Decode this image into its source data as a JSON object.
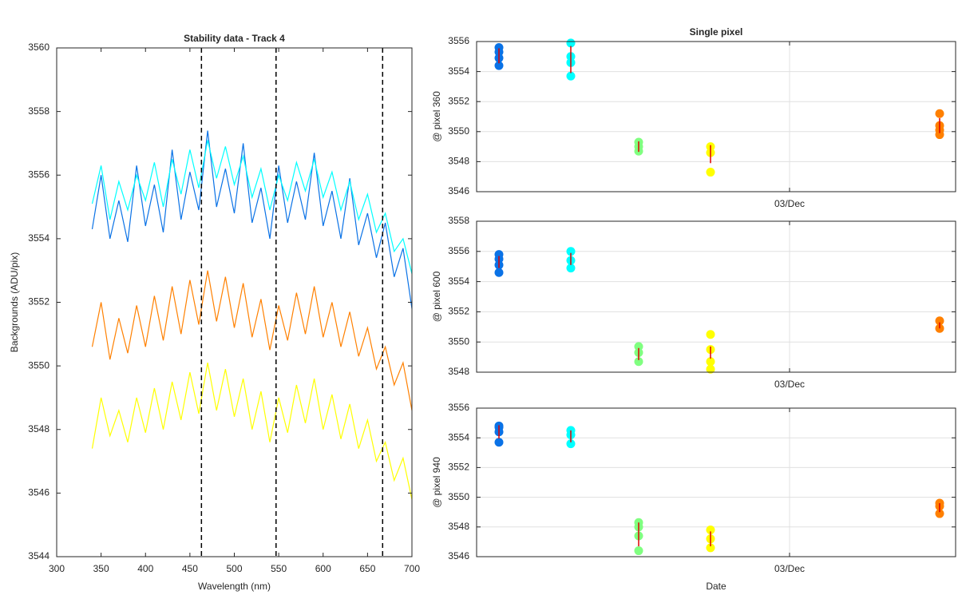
{
  "chart_data": [
    {
      "type": "line",
      "title": "Stability data - Track 4",
      "xlabel": "Wavelength (nm)",
      "ylabel": "Backgrounds (ADU/pix)",
      "xlim": [
        300,
        700
      ],
      "xticks": [
        300,
        350,
        400,
        450,
        500,
        550,
        600,
        650,
        700
      ],
      "ylim": [
        3544,
        3560
      ],
      "yticks": [
        3544,
        3546,
        3548,
        3550,
        3552,
        3554,
        3556,
        3558,
        3560
      ],
      "grid": false,
      "vlines": [
        463,
        547,
        667
      ],
      "vline_color": "#000000",
      "x": [
        340,
        350,
        360,
        370,
        380,
        390,
        400,
        410,
        420,
        430,
        440,
        450,
        460,
        470,
        480,
        490,
        500,
        510,
        520,
        530,
        540,
        550,
        560,
        570,
        580,
        590,
        600,
        610,
        620,
        630,
        640,
        650,
        660,
        670,
        680,
        690,
        700
      ],
      "series": [
        {
          "color": "#0a72e6",
          "values": [
            3554.3,
            3556.0,
            3554.0,
            3555.2,
            3553.9,
            3556.3,
            3554.4,
            3555.7,
            3554.2,
            3556.8,
            3554.6,
            3556.1,
            3554.9,
            3557.4,
            3555.0,
            3556.2,
            3554.8,
            3557.0,
            3554.5,
            3555.6,
            3554.0,
            3556.3,
            3554.5,
            3555.8,
            3554.6,
            3556.7,
            3554.4,
            3555.5,
            3554.0,
            3555.9,
            3553.8,
            3554.8,
            3553.4,
            3554.5,
            3552.8,
            3553.7,
            3551.8
          ]
        },
        {
          "color": "#00ffff",
          "values": [
            3555.1,
            3556.3,
            3554.6,
            3555.8,
            3554.9,
            3556.0,
            3555.2,
            3556.4,
            3555.0,
            3556.5,
            3555.4,
            3556.8,
            3555.6,
            3557.1,
            3555.9,
            3556.9,
            3555.7,
            3556.6,
            3555.3,
            3556.2,
            3554.9,
            3556.0,
            3555.2,
            3556.4,
            3555.5,
            3556.5,
            3555.3,
            3556.1,
            3554.9,
            3555.8,
            3554.6,
            3555.4,
            3554.2,
            3554.8,
            3553.6,
            3554.0,
            3552.9
          ]
        },
        {
          "color": "#ff8000",
          "values": [
            3550.6,
            3552.0,
            3550.2,
            3551.5,
            3550.4,
            3551.9,
            3550.6,
            3552.2,
            3550.8,
            3552.5,
            3551.0,
            3552.7,
            3551.3,
            3553.0,
            3551.4,
            3552.8,
            3551.2,
            3552.6,
            3550.9,
            3552.1,
            3550.5,
            3551.9,
            3550.8,
            3552.3,
            3551.0,
            3552.5,
            3550.9,
            3552.0,
            3550.6,
            3551.7,
            3550.3,
            3551.2,
            3549.9,
            3550.6,
            3549.4,
            3550.1,
            3548.6
          ]
        },
        {
          "color": "#ffff00",
          "values": [
            3547.4,
            3549.0,
            3547.8,
            3548.6,
            3547.6,
            3549.0,
            3547.9,
            3549.3,
            3548.0,
            3549.5,
            3548.3,
            3549.8,
            3548.5,
            3550.1,
            3548.6,
            3549.9,
            3548.4,
            3549.6,
            3548.0,
            3549.2,
            3547.6,
            3549.0,
            3547.9,
            3549.4,
            3548.2,
            3549.6,
            3548.0,
            3549.1,
            3547.7,
            3548.8,
            3547.4,
            3548.3,
            3547.0,
            3547.6,
            3546.4,
            3547.1,
            3545.8
          ]
        }
      ]
    },
    {
      "type": "scatter",
      "title": "Single pixel",
      "ylabel": "@ pixel 360",
      "xlim": [
        2.216,
        3.416
      ],
      "xticks": [
        {
          "value": 3,
          "label": "03/Dec"
        }
      ],
      "ylim": [
        3546,
        3556
      ],
      "yticks": [
        3546,
        3548,
        3550,
        3552,
        3554,
        3556
      ],
      "grid": true,
      "series": [
        {
          "color": "#0a72e6",
          "x": [
            2.272,
            2.272,
            2.272,
            2.272
          ],
          "values": [
            3555.6,
            3555.3,
            3554.9,
            3554.4
          ]
        },
        {
          "color": "#00ffff",
          "x": [
            2.452,
            2.452,
            2.452,
            2.452
          ],
          "values": [
            3555.9,
            3555.0,
            3554.6,
            3553.7
          ]
        },
        {
          "color": "#80ff80",
          "x": [
            2.622,
            2.622,
            2.622
          ],
          "values": [
            3549.3,
            3549.0,
            3548.7
          ]
        },
        {
          "color": "#ffff00",
          "x": [
            2.802,
            2.802,
            2.802
          ],
          "values": [
            3549.0,
            3548.6,
            3547.3
          ]
        },
        {
          "color": "#ff8000",
          "x": [
            3.376,
            3.376,
            3.376,
            3.376
          ],
          "values": [
            3551.2,
            3550.4,
            3550.1,
            3549.8
          ]
        }
      ],
      "error_bars": {
        "color": "#e00000",
        "x": [
          2.272,
          2.452,
          2.622,
          2.802,
          3.376
        ],
        "values": [
          3555.05,
          3554.8,
          3549.0,
          3548.5,
          3550.4
        ],
        "errors": [
          0.5,
          0.9,
          0.35,
          0.6,
          0.5
        ]
      }
    },
    {
      "type": "scatter",
      "ylabel": "@ pixel 600",
      "xlim": [
        2.216,
        3.416
      ],
      "xticks": [
        {
          "value": 3,
          "label": "03/Dec"
        }
      ],
      "ylim": [
        3548,
        3558
      ],
      "yticks": [
        3548,
        3550,
        3552,
        3554,
        3556,
        3558
      ],
      "grid": true,
      "series": [
        {
          "color": "#0a72e6",
          "x": [
            2.272,
            2.272,
            2.272,
            2.272
          ],
          "values": [
            3555.8,
            3555.5,
            3555.1,
            3554.6
          ]
        },
        {
          "color": "#00ffff",
          "x": [
            2.452,
            2.452,
            2.452
          ],
          "values": [
            3556.0,
            3555.4,
            3554.9
          ]
        },
        {
          "color": "#80ff80",
          "x": [
            2.622,
            2.622,
            2.622
          ],
          "values": [
            3549.7,
            3549.3,
            3548.7
          ]
        },
        {
          "color": "#ffff00",
          "x": [
            2.802,
            2.802,
            2.802,
            2.802
          ],
          "values": [
            3550.5,
            3549.5,
            3548.7,
            3548.2
          ]
        },
        {
          "color": "#ff8000",
          "x": [
            3.376,
            3.376
          ],
          "values": [
            3551.4,
            3550.9
          ]
        }
      ],
      "error_bars": {
        "color": "#e00000",
        "x": [
          2.272,
          2.452,
          2.622,
          2.802,
          3.376
        ],
        "values": [
          3555.3,
          3555.5,
          3549.2,
          3549.3,
          3551.1
        ],
        "errors": [
          0.4,
          0.4,
          0.4,
          0.4,
          0.2
        ]
      }
    },
    {
      "type": "scatter",
      "ylabel": "@ pixel 940",
      "xlabel": "Date",
      "xlim": [
        2.216,
        3.416
      ],
      "xticks": [
        {
          "value": 3,
          "label": "03/Dec"
        }
      ],
      "ylim": [
        3546,
        3556
      ],
      "yticks": [
        3546,
        3548,
        3550,
        3552,
        3554,
        3556
      ],
      "grid": true,
      "series": [
        {
          "color": "#0a72e6",
          "x": [
            2.272,
            2.272,
            2.272,
            2.272
          ],
          "values": [
            3554.8,
            3554.7,
            3554.4,
            3553.7
          ]
        },
        {
          "color": "#00ffff",
          "x": [
            2.452,
            2.452,
            2.452
          ],
          "values": [
            3554.5,
            3554.2,
            3553.6
          ]
        },
        {
          "color": "#80ff80",
          "x": [
            2.622,
            2.622,
            2.622,
            2.622
          ],
          "values": [
            3548.3,
            3548.0,
            3547.4,
            3546.4
          ]
        },
        {
          "color": "#ffff00",
          "x": [
            2.802,
            2.802,
            2.802
          ],
          "values": [
            3547.8,
            3547.2,
            3546.6
          ]
        },
        {
          "color": "#ff8000",
          "x": [
            3.376,
            3.376,
            3.376
          ],
          "values": [
            3549.6,
            3549.4,
            3548.9
          ]
        }
      ],
      "error_bars": {
        "color": "#e00000",
        "x": [
          2.272,
          2.452,
          2.622,
          2.802,
          3.376
        ],
        "values": [
          3554.4,
          3554.1,
          3547.5,
          3547.2,
          3549.3
        ],
        "errors": [
          0.45,
          0.4,
          0.8,
          0.5,
          0.3
        ]
      }
    }
  ]
}
